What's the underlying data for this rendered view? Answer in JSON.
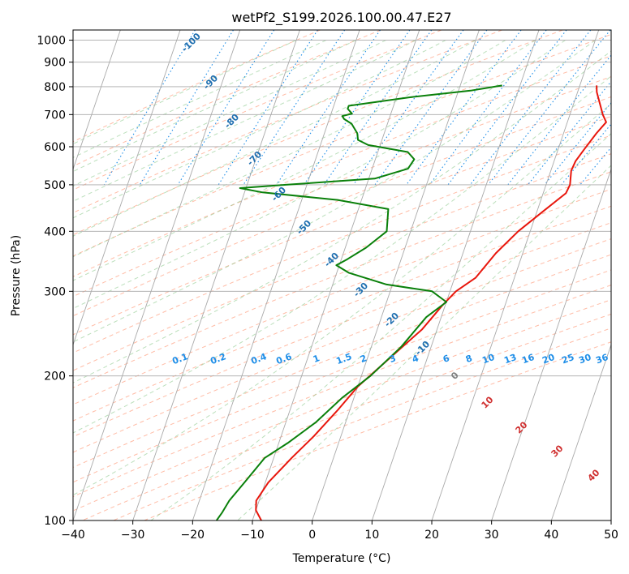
{
  "chart_data": {
    "type": "line",
    "subtype": "skew-t log-p",
    "title": "wetPf2_S199.2026.100.00.47.E27",
    "xlabel": "Temperature (°C)",
    "ylabel": "Pressure (hPa)",
    "xlim": [
      -40,
      50
    ],
    "ylim": [
      1050,
      100
    ],
    "y_scale": "log",
    "grid": true,
    "x_ticks": [
      "−40",
      "−30",
      "−20",
      "−10",
      "0",
      "10",
      "20",
      "30",
      "40",
      "50"
    ],
    "y_ticks": [
      "100",
      "200",
      "300",
      "400",
      "500",
      "600",
      "700",
      "800",
      "900",
      "1000"
    ],
    "dry_adiabat_labels": [
      "-100",
      "-90",
      "-80",
      "-70",
      "-60",
      "-50",
      "-40",
      "-30",
      "-20",
      "-10",
      "0",
      "10",
      "20",
      "30",
      "40"
    ],
    "mixing_ratio_labels": [
      "0.1",
      "0.2",
      "0.4",
      "0.6",
      "1",
      "1.5",
      "2",
      "3",
      "4",
      "6",
      "8",
      "10",
      "13",
      "16",
      "20",
      "25",
      "30",
      "36"
    ],
    "colors": {
      "temperature": "#e8160c",
      "dewpoint": "#0a800a",
      "dry_adiabat": "#ffa080",
      "moist_adiabat": "#8ec98e",
      "mixing_ratio": "#1e8ee8",
      "isotherm": "#aaaaaa",
      "label_cold": "#1f6fb0",
      "label_warm": "#d03030",
      "label_zero": "#808080"
    },
    "series": [
      {
        "key": "temperature",
        "points": [
          [
            22.8,
            805
          ],
          [
            23.2,
            780
          ],
          [
            25.5,
            700
          ],
          [
            26.5,
            675
          ],
          [
            25.5,
            640
          ],
          [
            24.3,
            590
          ],
          [
            23.6,
            560
          ],
          [
            23.4,
            535
          ],
          [
            24.0,
            500
          ],
          [
            23.8,
            480
          ],
          [
            21.0,
            440
          ],
          [
            18.0,
            400
          ],
          [
            15.5,
            360
          ],
          [
            13.5,
            320
          ],
          [
            11.0,
            300
          ],
          [
            9.5,
            280
          ],
          [
            7.5,
            250
          ],
          [
            4.0,
            220
          ],
          [
            0.0,
            190
          ],
          [
            -2.0,
            170
          ],
          [
            -4.5,
            150
          ],
          [
            -7.0,
            135
          ],
          [
            -9.5,
            120
          ],
          [
            -10.5,
            110
          ],
          [
            -10.0,
            105
          ],
          [
            -8.5,
            100
          ]
        ]
      },
      {
        "key": "dewpoint",
        "points": [
          [
            7.0,
            805
          ],
          [
            2.0,
            785
          ],
          [
            -8.0,
            760
          ],
          [
            -17.5,
            730
          ],
          [
            -17.5,
            720
          ],
          [
            -16.5,
            703
          ],
          [
            -18.0,
            695
          ],
          [
            -17.5,
            685
          ],
          [
            -16.0,
            670
          ],
          [
            -14.5,
            640
          ],
          [
            -14.0,
            620
          ],
          [
            -12.0,
            605
          ],
          [
            -5.0,
            585
          ],
          [
            -3.5,
            565
          ],
          [
            -4.0,
            540
          ],
          [
            -9.0,
            515
          ],
          [
            -23.5,
            500
          ],
          [
            -31.0,
            492
          ],
          [
            -27.0,
            482
          ],
          [
            -14.0,
            465
          ],
          [
            -5.0,
            445
          ],
          [
            -4.0,
            400
          ],
          [
            -6.5,
            370
          ],
          [
            -9.0,
            350
          ],
          [
            -10.5,
            340
          ],
          [
            -8.0,
            328
          ],
          [
            -1.0,
            310
          ],
          [
            7.0,
            300
          ],
          [
            10.0,
            285
          ],
          [
            7.5,
            265
          ],
          [
            5.0,
            230
          ],
          [
            1.5,
            200
          ],
          [
            -2.0,
            180
          ],
          [
            -5.0,
            160
          ],
          [
            -8.5,
            145
          ],
          [
            -11.5,
            135
          ],
          [
            -13.5,
            120
          ],
          [
            -15.0,
            110
          ],
          [
            -15.5,
            104
          ],
          [
            -16.0,
            100
          ]
        ]
      }
    ]
  }
}
